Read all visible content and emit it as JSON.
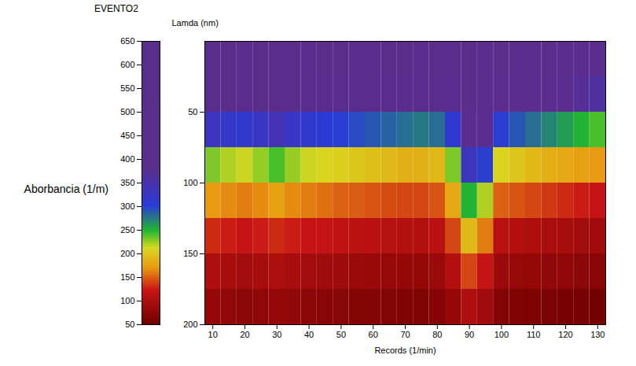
{
  "chart_data": {
    "type": "surface",
    "title": "EVENTO2",
    "x_label": "Records (1/min)",
    "y_label": "Lamda (nm)",
    "color_label": "Aborbancia (1/m)",
    "x": [
      10,
      15,
      20,
      25,
      30,
      35,
      40,
      45,
      50,
      55,
      60,
      65,
      70,
      75,
      80,
      85,
      90,
      95,
      100,
      105,
      110,
      115,
      120,
      125,
      130
    ],
    "y": [
      12.5,
      37.5,
      62.5,
      87.5,
      112.5,
      137.5,
      162.5,
      187.5
    ],
    "values": [
      [
        660,
        655,
        650,
        655,
        660,
        655,
        650,
        650,
        645,
        640,
        640,
        635,
        635,
        630,
        630,
        630,
        630,
        620,
        480,
        470,
        460,
        450,
        440,
        430,
        420
      ],
      [
        590,
        585,
        580,
        590,
        600,
        590,
        580,
        575,
        570,
        565,
        560,
        555,
        550,
        545,
        545,
        560,
        600,
        580,
        420,
        410,
        400,
        390,
        380,
        370,
        360
      ],
      [
        330,
        320,
        310,
        325,
        340,
        325,
        310,
        305,
        300,
        295,
        290,
        285,
        280,
        275,
        280,
        310,
        420,
        400,
        300,
        290,
        280,
        270,
        260,
        250,
        240
      ],
      [
        230,
        220,
        215,
        225,
        240,
        225,
        215,
        210,
        205,
        200,
        195,
        190,
        185,
        185,
        190,
        230,
        330,
        300,
        210,
        200,
        190,
        185,
        180,
        175,
        170
      ],
      [
        170,
        165,
        160,
        165,
        175,
        165,
        160,
        155,
        150,
        148,
        145,
        142,
        140,
        140,
        145,
        180,
        250,
        220,
        150,
        145,
        140,
        135,
        130,
        125,
        120
      ],
      [
        130,
        125,
        120,
        125,
        130,
        125,
        120,
        118,
        115,
        112,
        110,
        108,
        106,
        105,
        110,
        140,
        190,
        160,
        110,
        105,
        100,
        98,
        95,
        92,
        90
      ],
      [
        100,
        96,
        92,
        95,
        100,
        96,
        92,
        90,
        88,
        86,
        84,
        82,
        80,
        80,
        85,
        105,
        140,
        120,
        85,
        82,
        80,
        78,
        76,
        74,
        72
      ],
      [
        80,
        77,
        74,
        76,
        80,
        77,
        74,
        72,
        70,
        68,
        67,
        66,
        65,
        65,
        68,
        80,
        100,
        90,
        66,
        64,
        62,
        60,
        58,
        56,
        55
      ]
    ],
    "xlim": [
      7.5,
      132.5
    ],
    "xticks": [
      10,
      20,
      30,
      40,
      50,
      60,
      70,
      80,
      90,
      100,
      110,
      120,
      130
    ],
    "ylim": [
      0,
      200
    ],
    "yticks": [
      50,
      100,
      150,
      200
    ],
    "color_range": [
      50,
      650
    ],
    "color_ticks": [
      50,
      100,
      150,
      200,
      250,
      300,
      350,
      400,
      450,
      500,
      550,
      600,
      650
    ]
  }
}
